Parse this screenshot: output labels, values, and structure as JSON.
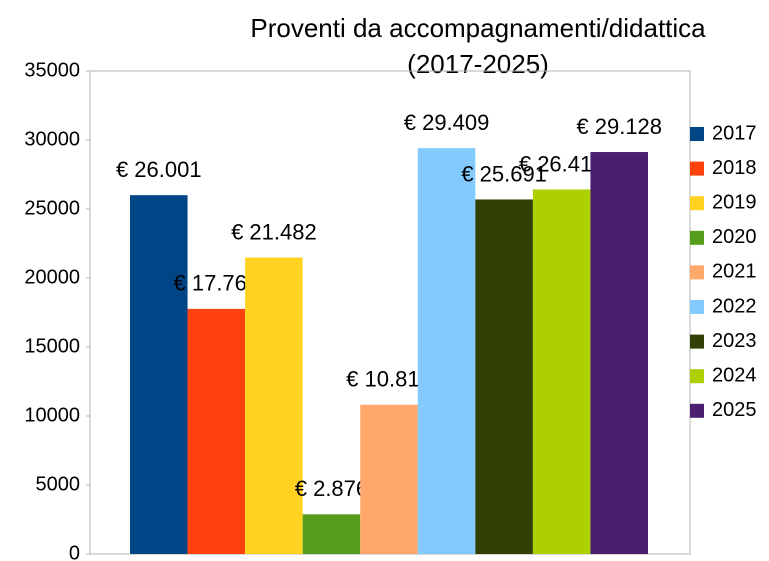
{
  "chart_data": {
    "type": "bar",
    "title": [
      "Proventi da accompagnamenti/didattica",
      "(2017-2025)"
    ],
    "categories": [
      null
    ],
    "series": [
      {
        "name": "2017",
        "color": "#004586",
        "values": [
          26001
        ],
        "value_labels": [
          "€ 26.001"
        ]
      },
      {
        "name": "2018",
        "color": "#ff420e",
        "values": [
          17762
        ],
        "value_labels": [
          "€ 17.762"
        ]
      },
      {
        "name": "2019",
        "color": "#ffd320",
        "values": [
          21482
        ],
        "value_labels": [
          "€ 21.482"
        ]
      },
      {
        "name": "2020",
        "color": "#579d1c",
        "values": [
          2876
        ],
        "value_labels": [
          "€ 2.876"
        ]
      },
      {
        "name": "2021",
        "color": "#ffa86c",
        "values": [
          10816
        ],
        "value_labels": [
          "€ 10.816"
        ]
      },
      {
        "name": "2022",
        "color": "#83caff",
        "values": [
          29409
        ],
        "value_labels": [
          "€ 29.409"
        ]
      },
      {
        "name": "2023",
        "color": "#314004",
        "values": [
          25691
        ],
        "value_labels": [
          "€ 25.691"
        ]
      },
      {
        "name": "2024",
        "color": "#aecf00",
        "values": [
          26415
        ],
        "value_labels": [
          "€ 26.415"
        ]
      },
      {
        "name": "2025",
        "color": "#4b1f6f",
        "values": [
          29128
        ],
        "value_labels": [
          "€ 29.128"
        ]
      }
    ],
    "ylim": [
      0,
      35000
    ],
    "yticks": [
      0,
      5000,
      10000,
      15000,
      20000,
      25000,
      30000,
      35000
    ],
    "legend": "right"
  }
}
